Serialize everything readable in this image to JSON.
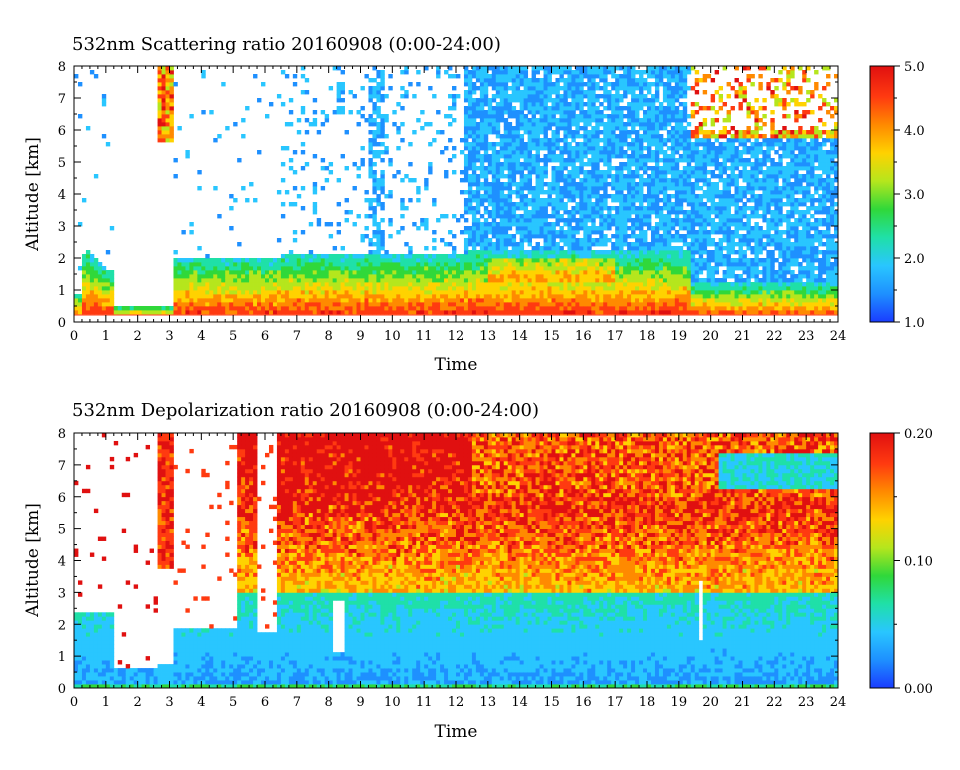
{
  "chart_data": [
    {
      "type": "heatmap",
      "title": "532nm Scattering ratio  20160908 (0:00-24:00)",
      "xlabel": "Time",
      "ylabel": "Altitude [km]",
      "xlim": [
        0,
        24
      ],
      "ylim": [
        0,
        8
      ],
      "x_ticks": [
        "0",
        "1",
        "2",
        "3",
        "4",
        "5",
        "6",
        "7",
        "8",
        "9",
        "10",
        "11",
        "12",
        "13",
        "14",
        "15",
        "16",
        "17",
        "18",
        "19",
        "20",
        "21",
        "22",
        "23",
        "24"
      ],
      "y_ticks": [
        "0",
        "1",
        "2",
        "3",
        "4",
        "5",
        "6",
        "7",
        "8"
      ],
      "colorbar": {
        "range": [
          1.0,
          5.0
        ],
        "tick_labels": [
          "1.0",
          "2.0",
          "3.0",
          "4.0",
          "5.0"
        ],
        "tick_values": [
          1.0,
          2.0,
          3.0,
          4.0,
          5.0
        ]
      },
      "colormap": [
        "#1a3cff",
        "#1e90ff",
        "#29c6ff",
        "#1fe0a8",
        "#30d83a",
        "#b5e61d",
        "#ffd200",
        "#ff8a00",
        "#ff3a10",
        "#e01010"
      ]
    },
    {
      "type": "heatmap",
      "title": "532nm Depolarization ratio  20160908 (0:00-24:00)",
      "xlabel": "Time",
      "ylabel": "Altitude [km]",
      "xlim": [
        0,
        24
      ],
      "ylim": [
        0,
        8
      ],
      "x_ticks": [
        "0",
        "1",
        "2",
        "3",
        "4",
        "5",
        "6",
        "7",
        "8",
        "9",
        "10",
        "11",
        "12",
        "13",
        "14",
        "15",
        "16",
        "17",
        "18",
        "19",
        "20",
        "21",
        "22",
        "23",
        "24"
      ],
      "y_ticks": [
        "0",
        "1",
        "2",
        "3",
        "4",
        "5",
        "6",
        "7",
        "8"
      ],
      "colorbar": {
        "range": [
          0.0,
          0.2
        ],
        "tick_labels": [
          "0.00",
          "0.10",
          "0.20"
        ],
        "tick_values": [
          0.0,
          0.1,
          0.2
        ]
      },
      "colormap": [
        "#1a3cff",
        "#1e90ff",
        "#29c6ff",
        "#1fe0a8",
        "#30d83a",
        "#b5e61d",
        "#ffd200",
        "#ff8a00",
        "#ff3a10",
        "#e01010"
      ]
    }
  ]
}
